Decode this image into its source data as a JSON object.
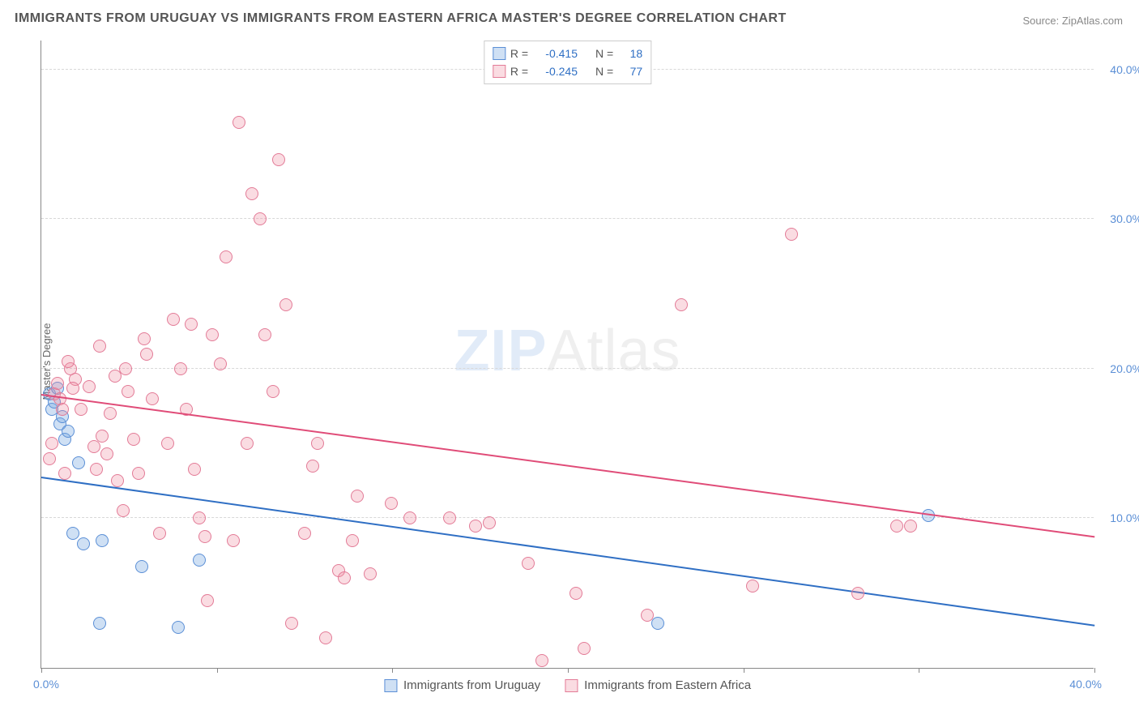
{
  "title": "IMMIGRANTS FROM URUGUAY VS IMMIGRANTS FROM EASTERN AFRICA MASTER'S DEGREE CORRELATION CHART",
  "source_label": "Source: ",
  "source_name": "ZipAtlas.com",
  "ylabel": "Master's Degree",
  "watermark_bold": "ZIP",
  "watermark_light": "Atlas",
  "chart": {
    "type": "scatter",
    "xlim": [
      0,
      40
    ],
    "ylim": [
      0,
      42
    ],
    "x_tick_label_left": "0.0%",
    "x_tick_label_right": "40.0%",
    "x_minor_ticks": [
      0,
      6.67,
      13.33,
      20,
      26.67,
      33.33,
      40
    ],
    "y_gridlines": [
      {
        "value": 10,
        "label": "10.0%"
      },
      {
        "value": 20,
        "label": "20.0%"
      },
      {
        "value": 30,
        "label": "30.0%"
      },
      {
        "value": 40,
        "label": "40.0%"
      }
    ],
    "background_color": "#ffffff",
    "grid_color": "#d8d8d8",
    "axis_color": "#888888",
    "tick_label_color": "#5b8fd6",
    "marker_radius": 8,
    "marker_stroke_width": 1.5,
    "series": [
      {
        "id": "uruguay",
        "name": "Immigrants from Uruguay",
        "color_fill": "rgba(118,167,224,0.35)",
        "color_stroke": "#5b8fd6",
        "R": "-0.415",
        "N": "18",
        "trend": {
          "x1": 0,
          "y1": 12.7,
          "x2": 40,
          "y2": 2.8,
          "color": "#2f6fc4",
          "width": 2
        },
        "points": [
          [
            0.3,
            18.3
          ],
          [
            0.4,
            17.3
          ],
          [
            0.6,
            18.7
          ],
          [
            0.7,
            16.3
          ],
          [
            0.9,
            15.3
          ],
          [
            1.0,
            15.8
          ],
          [
            1.4,
            13.7
          ],
          [
            1.2,
            9.0
          ],
          [
            1.6,
            8.3
          ],
          [
            2.3,
            8.5
          ],
          [
            3.8,
            6.8
          ],
          [
            2.2,
            3.0
          ],
          [
            5.2,
            2.7
          ],
          [
            6.0,
            7.2
          ],
          [
            33.7,
            10.2
          ],
          [
            23.4,
            3.0
          ],
          [
            0.5,
            17.8
          ],
          [
            0.8,
            16.8
          ]
        ]
      },
      {
        "id": "eastern-africa",
        "name": "Immigrants from Eastern Africa",
        "color_fill": "rgba(240,140,160,0.30)",
        "color_stroke": "#e37b97",
        "R": "-0.245",
        "N": "77",
        "trend": {
          "x1": 0,
          "y1": 18.2,
          "x2": 40,
          "y2": 8.7,
          "color": "#e04c78",
          "width": 2
        },
        "points": [
          [
            0.5,
            18.3
          ],
          [
            0.6,
            19.0
          ],
          [
            0.7,
            18.0
          ],
          [
            0.8,
            17.3
          ],
          [
            0.4,
            15.0
          ],
          [
            0.3,
            14.0
          ],
          [
            1.1,
            20.0
          ],
          [
            1.3,
            19.3
          ],
          [
            1.5,
            17.3
          ],
          [
            1.2,
            18.7
          ],
          [
            1.8,
            18.8
          ],
          [
            2.0,
            14.8
          ],
          [
            2.1,
            13.3
          ],
          [
            2.3,
            15.5
          ],
          [
            2.5,
            14.3
          ],
          [
            2.8,
            19.5
          ],
          [
            2.6,
            17.0
          ],
          [
            2.9,
            12.5
          ],
          [
            3.2,
            20.0
          ],
          [
            3.1,
            10.5
          ],
          [
            3.3,
            18.5
          ],
          [
            3.5,
            15.3
          ],
          [
            3.7,
            13.0
          ],
          [
            3.9,
            22.0
          ],
          [
            4.0,
            21.0
          ],
          [
            4.2,
            18.0
          ],
          [
            4.5,
            9.0
          ],
          [
            4.8,
            15.0
          ],
          [
            5.0,
            23.3
          ],
          [
            5.3,
            20.0
          ],
          [
            5.5,
            17.3
          ],
          [
            5.8,
            13.3
          ],
          [
            6.0,
            10.0
          ],
          [
            6.2,
            8.8
          ],
          [
            6.5,
            22.3
          ],
          [
            6.8,
            20.3
          ],
          [
            7.0,
            27.5
          ],
          [
            7.5,
            36.5
          ],
          [
            7.8,
            15.0
          ],
          [
            7.3,
            8.5
          ],
          [
            8.0,
            31.7
          ],
          [
            8.3,
            30.0
          ],
          [
            8.5,
            22.3
          ],
          [
            8.8,
            18.5
          ],
          [
            9.0,
            34.0
          ],
          [
            9.3,
            24.3
          ],
          [
            9.5,
            3.0
          ],
          [
            10.0,
            9.0
          ],
          [
            10.3,
            13.5
          ],
          [
            10.5,
            15.0
          ],
          [
            10.8,
            2.0
          ],
          [
            11.3,
            6.5
          ],
          [
            11.5,
            6.0
          ],
          [
            11.8,
            8.5
          ],
          [
            12.0,
            11.5
          ],
          [
            12.5,
            6.3
          ],
          [
            13.3,
            11.0
          ],
          [
            14.0,
            10.0
          ],
          [
            15.5,
            10.0
          ],
          [
            16.5,
            9.5
          ],
          [
            17.0,
            9.7
          ],
          [
            18.5,
            7.0
          ],
          [
            19.0,
            0.5
          ],
          [
            20.3,
            5.0
          ],
          [
            20.6,
            1.3
          ],
          [
            23.0,
            3.5
          ],
          [
            24.3,
            24.3
          ],
          [
            27.0,
            5.5
          ],
          [
            28.5,
            29.0
          ],
          [
            31.0,
            5.0
          ],
          [
            32.5,
            9.5
          ],
          [
            33.0,
            9.5
          ],
          [
            1.0,
            20.5
          ],
          [
            2.2,
            21.5
          ],
          [
            0.9,
            13.0
          ],
          [
            5.7,
            23.0
          ],
          [
            6.3,
            4.5
          ]
        ]
      }
    ],
    "legend_top": {
      "R_label": "R =",
      "N_label": "N =",
      "value_color": "#2f6fc4",
      "label_color": "#555555"
    }
  }
}
